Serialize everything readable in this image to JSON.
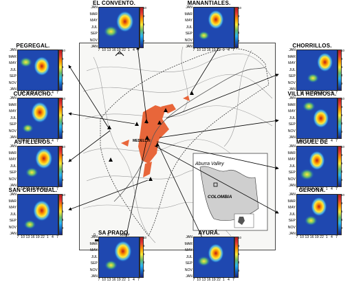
{
  "map": {
    "city_label": "MEDELLIN",
    "inset_valley_label": "Aburra Valley",
    "inset_country_label": "COLOMBIA",
    "scale_labels": [
      "0",
      "5",
      "10Km"
    ]
  },
  "y_months": [
    "JAN",
    "MAR",
    "MAY",
    "JUL",
    "SEP",
    "NOV",
    "JAN"
  ],
  "x_hours": [
    "7",
    "10",
    "13",
    "16",
    "19",
    "22",
    "1",
    "4",
    "7"
  ],
  "colorbar_ticks": [
    "10",
    "8",
    "6",
    "4",
    "2"
  ],
  "stations": [
    {
      "id": "el-convento",
      "name": "EL CONVENTO."
    },
    {
      "id": "manantiales",
      "name": "MANANTIALES."
    },
    {
      "id": "pegregal",
      "name": "PEGREGAL."
    },
    {
      "id": "chorrillos",
      "name": "CHORRILLOS."
    },
    {
      "id": "cucaracho",
      "name": "CUCARACHO."
    },
    {
      "id": "villa-hermosa",
      "name": "VILLA HERMOSA."
    },
    {
      "id": "astilleros",
      "name": "ASTILLEROS."
    },
    {
      "id": "miguel-de-aguinaga",
      "name": "MIGUEL DE AGUINAGA."
    },
    {
      "id": "san-cristobal",
      "name": "SAN CRISTOBAL."
    },
    {
      "id": "gerona",
      "name": "GERONA."
    },
    {
      "id": "sa-prado",
      "name": "SA PRADO."
    },
    {
      "id": "ayura",
      "name": "AYURÁ."
    }
  ]
}
